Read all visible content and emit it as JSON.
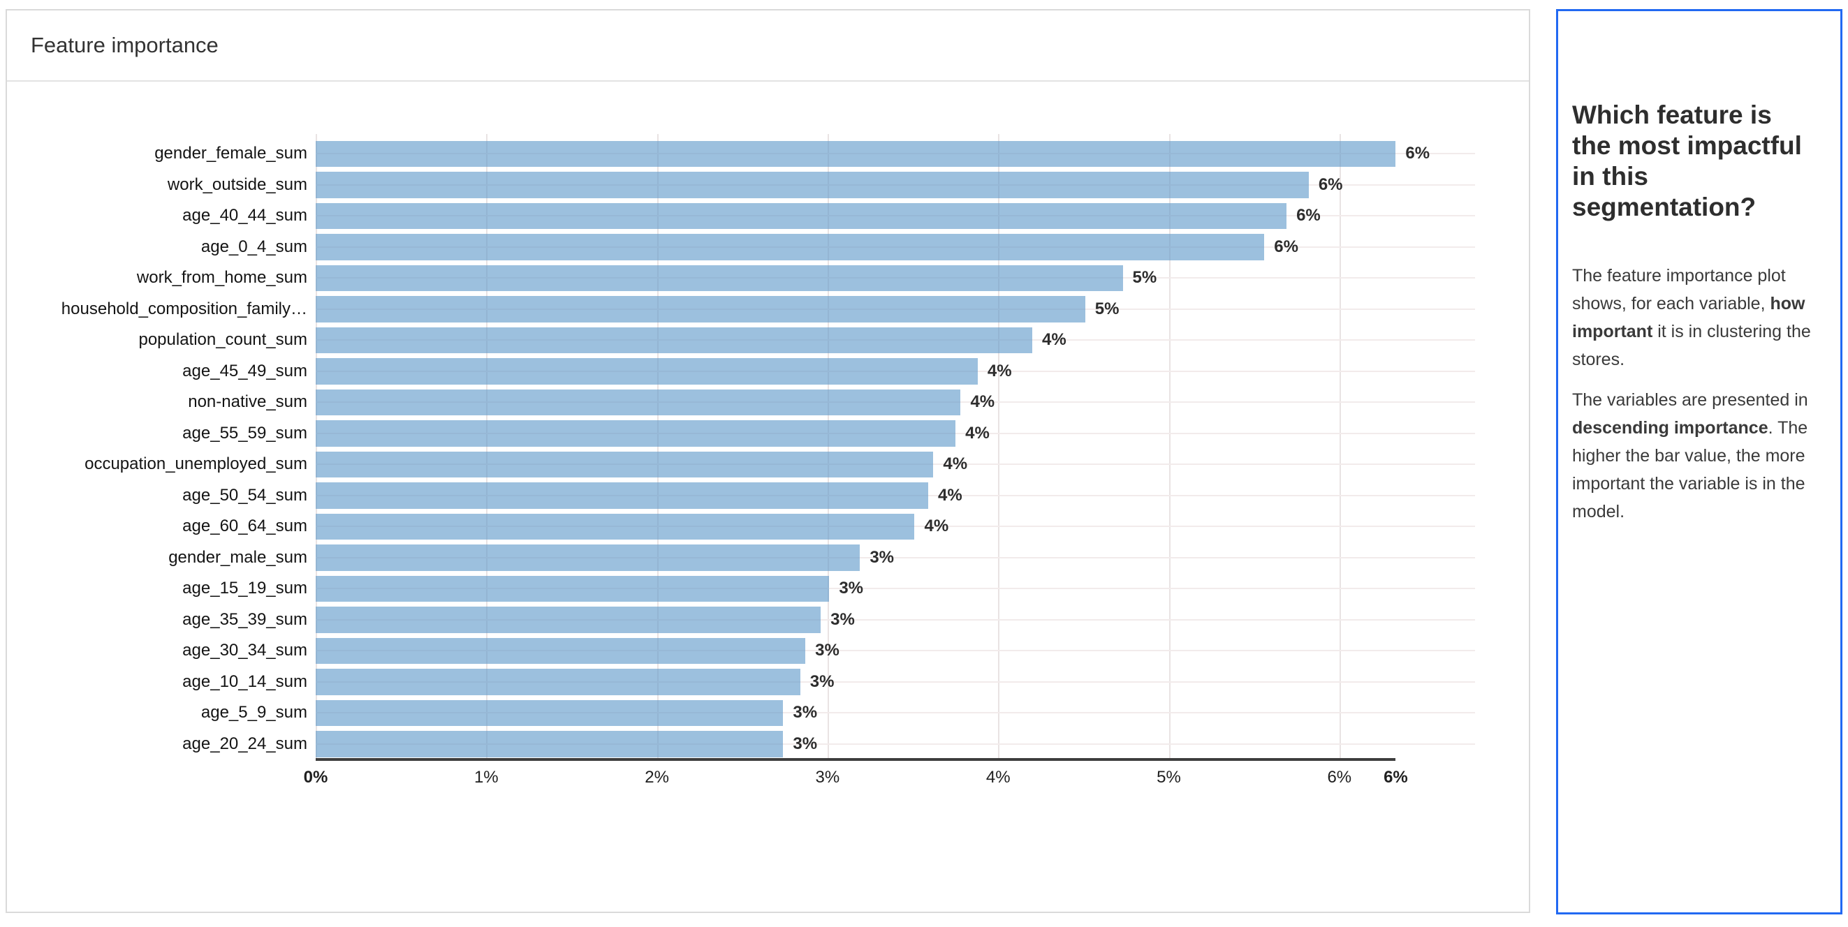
{
  "chart_card": {
    "header": "Feature importance"
  },
  "chart_data": {
    "type": "bar",
    "orientation": "horizontal",
    "title": "Feature importance",
    "xlabel": "",
    "ylabel": "",
    "xlim": [
      0,
      6.33
    ],
    "grid": true,
    "bar_color": "#9cc0de",
    "categories": [
      "gender_female_sum",
      "work_outside_sum",
      "age_40_44_sum",
      "age_0_4_sum",
      "work_from_home_sum",
      "household_composition_family…",
      "population_count_sum",
      "age_45_49_sum",
      "non-native_sum",
      "age_55_59_sum",
      "occupation_unemployed_sum",
      "age_50_54_sum",
      "age_60_64_sum",
      "gender_male_sum",
      "age_15_19_sum",
      "age_35_39_sum",
      "age_30_34_sum",
      "age_10_14_sum",
      "age_5_9_sum",
      "age_20_24_sum"
    ],
    "values": [
      6.33,
      5.82,
      5.69,
      5.56,
      4.73,
      4.51,
      4.2,
      3.88,
      3.78,
      3.75,
      3.62,
      3.59,
      3.51,
      3.19,
      3.01,
      2.96,
      2.87,
      2.84,
      2.74,
      2.74
    ],
    "value_labels": [
      "6%",
      "6%",
      "6%",
      "6%",
      "5%",
      "5%",
      "4%",
      "4%",
      "4%",
      "4%",
      "4%",
      "4%",
      "4%",
      "3%",
      "3%",
      "3%",
      "3%",
      "3%",
      "3%",
      "3%"
    ],
    "ticks": [
      {
        "label": "0%",
        "value": 0,
        "bold": true,
        "gridline": true
      },
      {
        "label": "1%",
        "value": 1,
        "bold": false,
        "gridline": true
      },
      {
        "label": "2%",
        "value": 2,
        "bold": false,
        "gridline": true
      },
      {
        "label": "3%",
        "value": 3,
        "bold": false,
        "gridline": true
      },
      {
        "label": "4%",
        "value": 4,
        "bold": false,
        "gridline": true
      },
      {
        "label": "5%",
        "value": 5,
        "bold": false,
        "gridline": true
      },
      {
        "label": "6%",
        "value": 6,
        "bold": false,
        "gridline": true
      },
      {
        "label": "6%",
        "value": 6.33,
        "bold": true,
        "gridline": false
      }
    ],
    "legend": null
  },
  "side_panel": {
    "border_color": "#2269f2",
    "heading": "Which feature is the most impactful in this segmentation?",
    "paragraphs": [
      {
        "segments": [
          {
            "text": "The feature importance plot shows, for each variable, ",
            "bold": false
          },
          {
            "text": "how important",
            "bold": true
          },
          {
            "text": " it is in clustering the stores.",
            "bold": false
          }
        ]
      },
      {
        "segments": [
          {
            "text": "The variables are presented in ",
            "bold": false
          },
          {
            "text": "descending importance",
            "bold": true
          },
          {
            "text": ". The higher the bar value, the more important the variable is in the model.",
            "bold": false
          }
        ]
      }
    ]
  }
}
